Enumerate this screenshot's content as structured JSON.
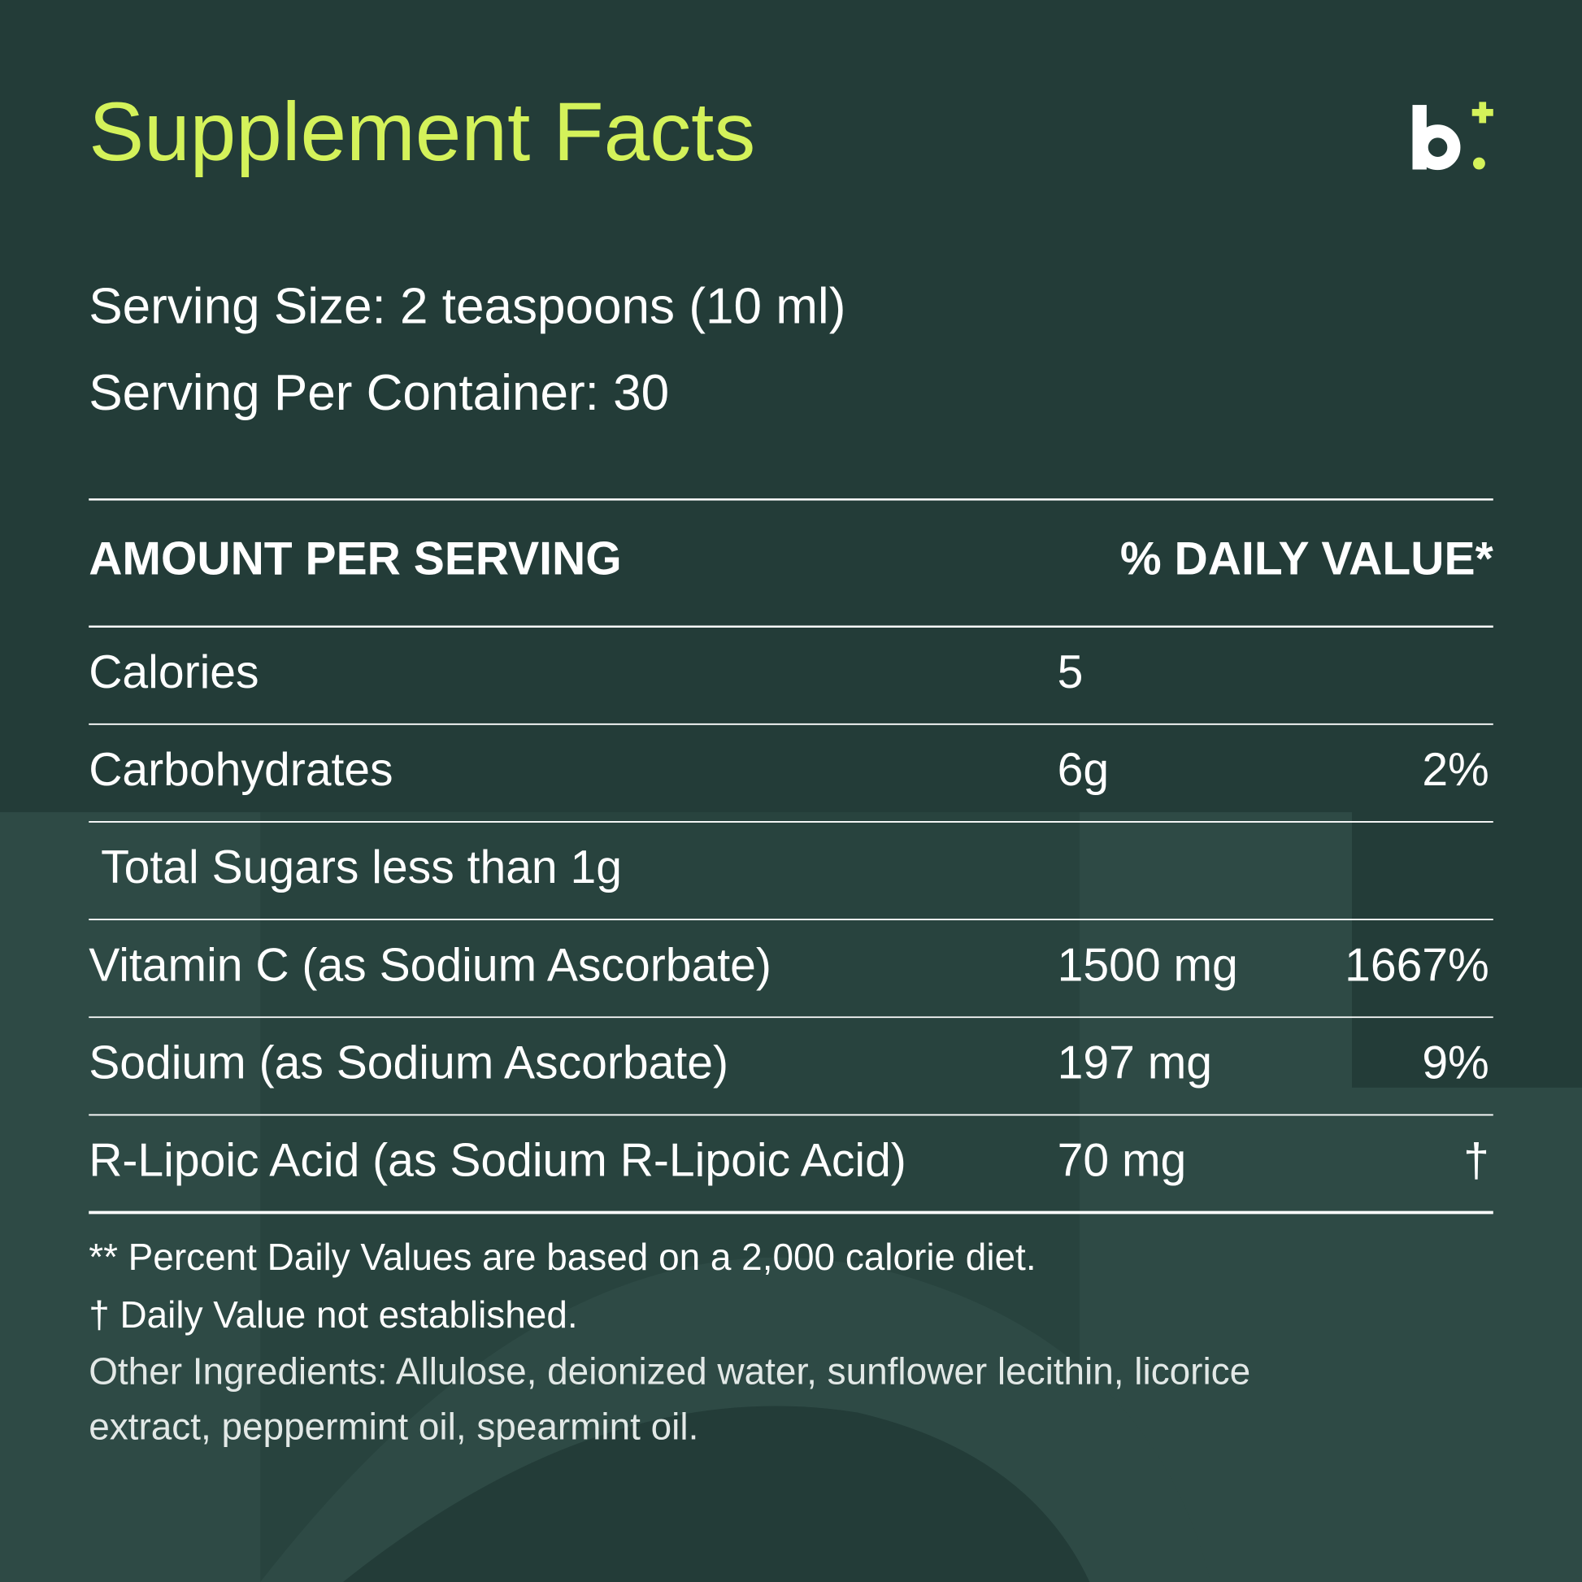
{
  "title": "Supplement Facts",
  "serving_size": "Serving Size: 2 teaspoons (10 ml)",
  "servings_per_container": "Serving Per Container: 30",
  "table": {
    "header": [
      "AMOUNT PER SERVING",
      "% DAILY VALUE*"
    ],
    "rows": [
      {
        "name": "Calories",
        "amount": "5"
      },
      {
        "name": "Carbohydrates",
        "amount": "6g",
        "dv": "2%"
      },
      {
        "name": "Total Sugars less than 1g"
      },
      {
        "name": "Vitamin C (as Sodium Ascorbate)",
        "amount": "1500 mg",
        "dv": "1667%"
      },
      {
        "name": "Sodium (as Sodium Ascorbate)",
        "amount": "197 mg",
        "dv": "9%"
      },
      {
        "name": "R-Lipoic Acid (as Sodium R-Lipoic Acid)",
        "amount": "70 mg",
        "dv": "†"
      }
    ]
  },
  "footnotes": [
    "** Percent Daily Values are based on a 2,000 calorie diet.",
    "† Daily Value not established.",
    "Other Ingredients: Allulose, deionized water, sunflower lecithin, licorice",
    "extract, peppermint oil, spearmint oil."
  ]
}
